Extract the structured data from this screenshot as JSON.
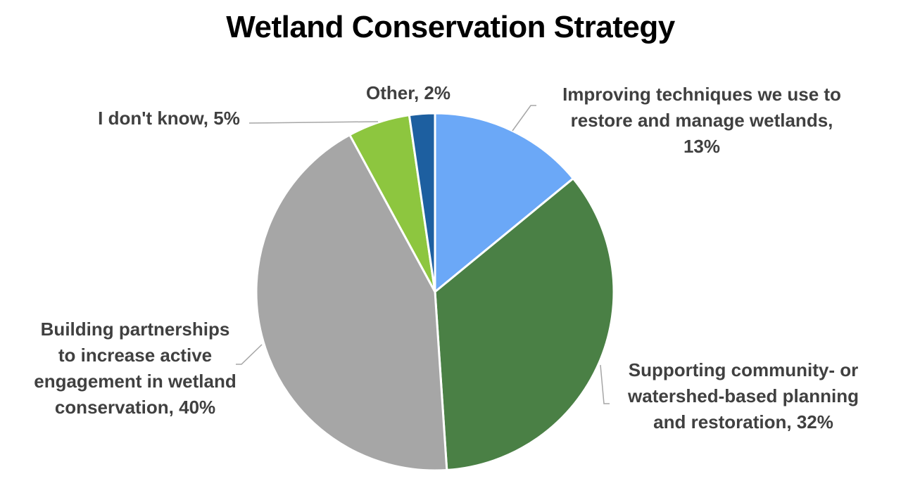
{
  "title": "Wetland Conservation Strategy",
  "chart_data": {
    "type": "pie",
    "title": "Wetland Conservation Strategy",
    "start_angle_deg": 0,
    "direction": "clockwise",
    "slices": [
      {
        "label": "Improving techniques we use to restore and manage wetlands",
        "value": 13,
        "display": "13%",
        "color": "#6ba8f7"
      },
      {
        "label": "Supporting community- or watershed-based planning and restoration",
        "value": 32,
        "display": "32%",
        "color": "#4a8045"
      },
      {
        "label": "Building partnerships to increase active engagement in wetland conservation",
        "value": 40,
        "display": "40%",
        "color": "#a6a6a6"
      },
      {
        "label": "I don't know",
        "value": 5,
        "display": "5%",
        "color": "#8dc63f"
      },
      {
        "label": "Other",
        "value": 2,
        "display": "2%",
        "color": "#1d5fa0"
      }
    ],
    "legend": "none (data labels with leader lines)"
  },
  "labels": {
    "improving": [
      "Improving techniques we use to",
      "restore and manage wetlands,",
      "13%"
    ],
    "supporting": [
      "Supporting community- or",
      "watershed-based planning",
      "and restoration, 32%"
    ],
    "building": [
      "Building partnerships",
      "to increase active",
      "engagement in wetland",
      "conservation, 40%"
    ],
    "dontknow": [
      "I don't know, 5%"
    ],
    "other": [
      "Other, 2%"
    ]
  }
}
